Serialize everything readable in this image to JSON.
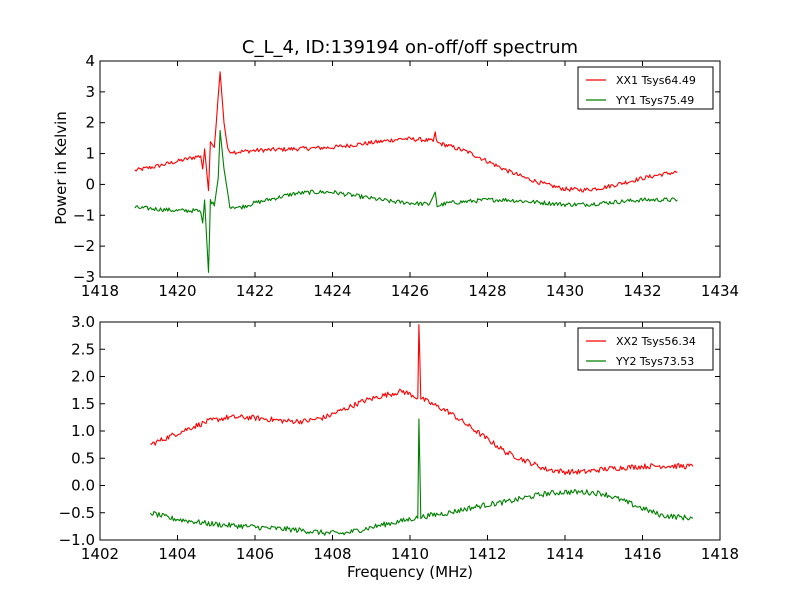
{
  "chart_data": [
    {
      "type": "line",
      "title": "C_L_4, ID:139194 on-off/off spectrum",
      "xlabel": "",
      "ylabel": "Power in Kelvin",
      "xlim": [
        1418,
        1434
      ],
      "ylim": [
        -3,
        4
      ],
      "xticks": [
        "1418",
        "1420",
        "1422",
        "1424",
        "1426",
        "1428",
        "1430",
        "1432",
        "1434"
      ],
      "yticks": [
        "4",
        "3",
        "2",
        "1",
        "0",
        "−1",
        "−2",
        "−3"
      ],
      "legend_position": "top-right",
      "series": [
        {
          "name": "XX1 Tsys64.49",
          "color": "#ff0000",
          "points": [
            [
              1418.9,
              0.45
            ],
            [
              1419.5,
              0.6
            ],
            [
              1420.0,
              0.75
            ],
            [
              1420.5,
              0.9
            ],
            [
              1420.6,
              0.92
            ],
            [
              1420.65,
              0.5
            ],
            [
              1420.7,
              1.15
            ],
            [
              1420.8,
              -0.2
            ],
            [
              1420.85,
              1.4
            ],
            [
              1420.95,
              1.2
            ],
            [
              1421.0,
              2.0
            ],
            [
              1421.1,
              3.65
            ],
            [
              1421.2,
              2.0
            ],
            [
              1421.3,
              1.1
            ],
            [
              1421.5,
              1.05
            ],
            [
              1422.0,
              1.1
            ],
            [
              1423.0,
              1.15
            ],
            [
              1424.0,
              1.2
            ],
            [
              1425.0,
              1.35
            ],
            [
              1425.8,
              1.48
            ],
            [
              1426.3,
              1.45
            ],
            [
              1426.6,
              1.4
            ],
            [
              1426.65,
              1.65
            ],
            [
              1426.7,
              1.35
            ],
            [
              1427.0,
              1.25
            ],
            [
              1427.5,
              1.05
            ],
            [
              1428.0,
              0.75
            ],
            [
              1428.5,
              0.45
            ],
            [
              1429.0,
              0.2
            ],
            [
              1429.5,
              0.0
            ],
            [
              1430.0,
              -0.15
            ],
            [
              1430.5,
              -0.18
            ],
            [
              1431.0,
              -0.1
            ],
            [
              1431.5,
              0.05
            ],
            [
              1432.0,
              0.2
            ],
            [
              1432.5,
              0.33
            ],
            [
              1432.9,
              0.4
            ]
          ]
        },
        {
          "name": "YY1 Tsys75.49",
          "color": "#008000",
          "points": [
            [
              1418.9,
              -0.75
            ],
            [
              1419.5,
              -0.8
            ],
            [
              1420.0,
              -0.85
            ],
            [
              1420.5,
              -0.85
            ],
            [
              1420.6,
              -0.9
            ],
            [
              1420.65,
              -1.25
            ],
            [
              1420.7,
              -0.5
            ],
            [
              1420.8,
              -2.85
            ],
            [
              1420.85,
              -0.5
            ],
            [
              1420.95,
              -0.7
            ],
            [
              1421.05,
              0.2
            ],
            [
              1421.1,
              1.75
            ],
            [
              1421.2,
              0.5
            ],
            [
              1421.35,
              -0.7
            ],
            [
              1421.6,
              -0.75
            ],
            [
              1422.0,
              -0.6
            ],
            [
              1422.5,
              -0.45
            ],
            [
              1423.0,
              -0.3
            ],
            [
              1423.5,
              -0.25
            ],
            [
              1424.0,
              -0.25
            ],
            [
              1424.5,
              -0.35
            ],
            [
              1425.0,
              -0.45
            ],
            [
              1425.5,
              -0.55
            ],
            [
              1426.0,
              -0.6
            ],
            [
              1426.5,
              -0.65
            ],
            [
              1426.65,
              -0.25
            ],
            [
              1426.7,
              -0.7
            ],
            [
              1427.0,
              -0.6
            ],
            [
              1427.5,
              -0.55
            ],
            [
              1428.0,
              -0.5
            ],
            [
              1428.5,
              -0.5
            ],
            [
              1429.0,
              -0.55
            ],
            [
              1429.5,
              -0.6
            ],
            [
              1430.0,
              -0.65
            ],
            [
              1430.5,
              -0.65
            ],
            [
              1431.0,
              -0.6
            ],
            [
              1431.5,
              -0.55
            ],
            [
              1432.0,
              -0.5
            ],
            [
              1432.5,
              -0.5
            ],
            [
              1432.9,
              -0.5
            ]
          ]
        }
      ]
    },
    {
      "type": "line",
      "title": "",
      "xlabel": "Frequency (MHz)",
      "ylabel": "",
      "xlim": [
        1402,
        1418
      ],
      "ylim": [
        -1,
        3
      ],
      "xticks": [
        "1402",
        "1404",
        "1406",
        "1408",
        "1410",
        "1412",
        "1414",
        "1416",
        "1418"
      ],
      "yticks": [
        "3.0",
        "2.5",
        "2.0",
        "1.5",
        "1.0",
        "0.5",
        "0.0",
        "−0.5",
        "−1.0"
      ],
      "legend_position": "top-right",
      "series": [
        {
          "name": "XX2 Tsys56.34",
          "color": "#ff0000",
          "points": [
            [
              1403.3,
              0.75
            ],
            [
              1403.8,
              0.9
            ],
            [
              1404.3,
              1.05
            ],
            [
              1404.8,
              1.18
            ],
            [
              1405.3,
              1.25
            ],
            [
              1405.8,
              1.25
            ],
            [
              1406.3,
              1.22
            ],
            [
              1406.8,
              1.18
            ],
            [
              1407.3,
              1.18
            ],
            [
              1407.8,
              1.25
            ],
            [
              1408.3,
              1.4
            ],
            [
              1408.8,
              1.55
            ],
            [
              1409.3,
              1.65
            ],
            [
              1409.8,
              1.73
            ],
            [
              1410.1,
              1.65
            ],
            [
              1410.2,
              1.6
            ],
            [
              1410.23,
              2.95
            ],
            [
              1410.28,
              1.6
            ],
            [
              1410.5,
              1.52
            ],
            [
              1411.0,
              1.35
            ],
            [
              1411.5,
              1.1
            ],
            [
              1412.0,
              0.85
            ],
            [
              1412.5,
              0.6
            ],
            [
              1413.0,
              0.45
            ],
            [
              1413.5,
              0.3
            ],
            [
              1414.0,
              0.25
            ],
            [
              1414.5,
              0.25
            ],
            [
              1415.0,
              0.3
            ],
            [
              1415.5,
              0.33
            ],
            [
              1416.0,
              0.35
            ],
            [
              1416.5,
              0.36
            ],
            [
              1417.3,
              0.35
            ]
          ]
        },
        {
          "name": "YY2 Tsys73.53",
          "color": "#008000",
          "points": [
            [
              1403.3,
              -0.5
            ],
            [
              1403.8,
              -0.6
            ],
            [
              1404.3,
              -0.65
            ],
            [
              1404.8,
              -0.7
            ],
            [
              1405.3,
              -0.73
            ],
            [
              1405.8,
              -0.75
            ],
            [
              1406.3,
              -0.78
            ],
            [
              1406.8,
              -0.8
            ],
            [
              1407.3,
              -0.83
            ],
            [
              1407.8,
              -0.87
            ],
            [
              1408.3,
              -0.88
            ],
            [
              1408.8,
              -0.8
            ],
            [
              1409.3,
              -0.72
            ],
            [
              1409.8,
              -0.65
            ],
            [
              1410.1,
              -0.6
            ],
            [
              1410.2,
              -0.6
            ],
            [
              1410.23,
              1.22
            ],
            [
              1410.28,
              -0.58
            ],
            [
              1410.5,
              -0.55
            ],
            [
              1411.0,
              -0.5
            ],
            [
              1411.5,
              -0.42
            ],
            [
              1412.0,
              -0.35
            ],
            [
              1412.5,
              -0.3
            ],
            [
              1413.0,
              -0.22
            ],
            [
              1413.5,
              -0.15
            ],
            [
              1414.0,
              -0.12
            ],
            [
              1414.5,
              -0.12
            ],
            [
              1415.0,
              -0.15
            ],
            [
              1415.5,
              -0.28
            ],
            [
              1416.0,
              -0.42
            ],
            [
              1416.5,
              -0.55
            ],
            [
              1417.3,
              -0.6
            ]
          ]
        }
      ]
    }
  ]
}
